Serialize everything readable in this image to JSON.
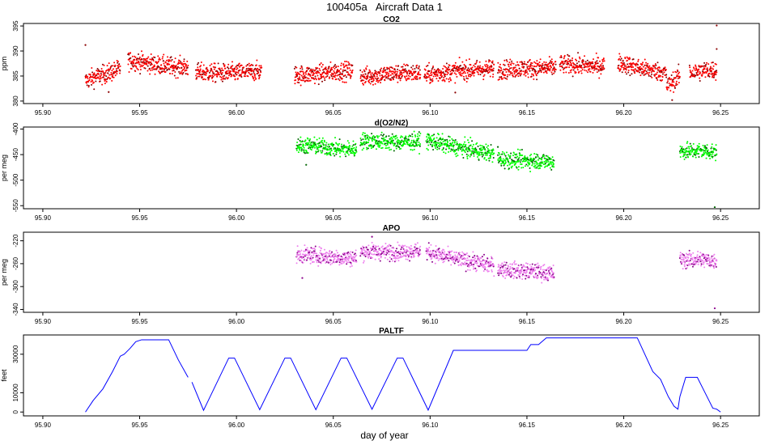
{
  "figure": {
    "title": "100405a   Aircraft Data 1",
    "xlabel": "day of year",
    "x_ticks": [
      95.9,
      95.95,
      96.0,
      96.05,
      96.1,
      96.15,
      96.2,
      96.25
    ],
    "x_tick_labels": [
      "95.90",
      "95.95",
      "96.00",
      "96.05",
      "96.10",
      "96.15",
      "96.20",
      "96.25"
    ],
    "xlim": [
      95.89,
      96.27
    ]
  },
  "chart_data": [
    {
      "id": "co2",
      "type": "scatter",
      "title": "CO2",
      "ylabel": "ppm",
      "ylim": [
        379.5,
        395.5
      ],
      "y_ticks": [
        380,
        385,
        390,
        395
      ],
      "y_tick_labels": [
        "380",
        "385",
        "390",
        "395"
      ],
      "color": "#ff0000",
      "edge_color": "#8b0000",
      "noise": 0.9,
      "segments": [
        {
          "x0": 95.922,
          "x1": 95.94,
          "y0": 384.0,
          "y1": 386.5
        },
        {
          "x0": 95.944,
          "x1": 95.975,
          "y0": 388.0,
          "y1": 386.6
        },
        {
          "x0": 95.979,
          "x1": 96.013,
          "y0": 385.6,
          "y1": 385.8
        },
        {
          "x0": 96.03,
          "x1": 96.06,
          "y0": 385.2,
          "y1": 386.0
        },
        {
          "x0": 96.064,
          "x1": 96.095,
          "y0": 385.0,
          "y1": 385.7
        },
        {
          "x0": 96.097,
          "x1": 96.133,
          "y0": 385.3,
          "y1": 386.6
        },
        {
          "x0": 96.135,
          "x1": 96.165,
          "y0": 386.2,
          "y1": 386.8
        },
        {
          "x0": 96.167,
          "x1": 96.19,
          "y0": 387.2,
          "y1": 387.0
        },
        {
          "x0": 96.197,
          "x1": 96.222,
          "y0": 387.6,
          "y1": 385.5
        },
        {
          "x0": 96.222,
          "x1": 96.229,
          "y0": 383.0,
          "y1": 385.0
        },
        {
          "x0": 96.234,
          "x1": 96.248,
          "y0": 385.8,
          "y1": 386.2
        }
      ],
      "outliers": [
        {
          "x": 95.922,
          "y": 391.2
        },
        {
          "x": 95.934,
          "y": 381.8
        },
        {
          "x": 96.113,
          "y": 381.7
        },
        {
          "x": 96.225,
          "y": 380.2
        },
        {
          "x": 96.248,
          "y": 395.1
        },
        {
          "x": 96.248,
          "y": 390.4
        }
      ]
    },
    {
      "id": "do2n2",
      "type": "scatter",
      "title": "d(O2/N2)",
      "ylabel": "per meg",
      "ylim": [
        -556,
        -396
      ],
      "y_ticks": [
        -550,
        -500,
        -450,
        -400
      ],
      "y_tick_labels": [
        "-550",
        "-500",
        "-450",
        "-400"
      ],
      "color": "#00ff00",
      "edge_color": "#006400",
      "noise": 8,
      "segments": [
        {
          "x0": 96.031,
          "x1": 96.062,
          "y0": -432,
          "y1": -440
        },
        {
          "x0": 96.064,
          "x1": 96.095,
          "y0": -424,
          "y1": -425
        },
        {
          "x0": 96.098,
          "x1": 96.133,
          "y0": -422,
          "y1": -450
        },
        {
          "x0": 96.135,
          "x1": 96.164,
          "y0": -458,
          "y1": -465
        },
        {
          "x0": 96.229,
          "x1": 96.248,
          "y0": -442,
          "y1": -445
        }
      ],
      "outliers": [
        {
          "x": 96.247,
          "y": -553
        },
        {
          "x": 96.036,
          "y": -470
        },
        {
          "x": 96.135,
          "y": -435
        }
      ]
    },
    {
      "id": "apo",
      "type": "scatter",
      "title": "APO",
      "ylabel": "per meg",
      "ylim": [
        -345,
        -205
      ],
      "y_ticks": [
        -340,
        -300,
        -260,
        -220
      ],
      "y_tick_labels": [
        "-340",
        "-300",
        "-260",
        "-220"
      ],
      "color": "#ee82ee",
      "edge_color": "#8b008b",
      "noise": 7,
      "segments": [
        {
          "x0": 96.031,
          "x1": 96.062,
          "y0": -245,
          "y1": -250
        },
        {
          "x0": 96.064,
          "x1": 96.095,
          "y0": -240,
          "y1": -238
        },
        {
          "x0": 96.098,
          "x1": 96.133,
          "y0": -240,
          "y1": -265
        },
        {
          "x0": 96.135,
          "x1": 96.164,
          "y0": -268,
          "y1": -278
        },
        {
          "x0": 96.229,
          "x1": 96.248,
          "y0": -252,
          "y1": -255
        }
      ],
      "outliers": [
        {
          "x": 96.247,
          "y": -338
        },
        {
          "x": 96.07,
          "y": -213
        },
        {
          "x": 96.034,
          "y": -285
        }
      ]
    },
    {
      "id": "paltf",
      "type": "line",
      "title": "PALTF",
      "ylabel": "feet",
      "ylim": [
        -2000,
        40000
      ],
      "y_ticks": [
        0,
        10000,
        30000
      ],
      "y_tick_labels": [
        "0",
        "10000",
        "30000"
      ],
      "color": "#0000ff",
      "series": [
        {
          "name": "",
          "points": [
            [
              95.922,
              0
            ],
            [
              95.926,
              6000
            ],
            [
              95.931,
              12000
            ],
            [
              95.936,
              21000
            ],
            [
              95.94,
              29000
            ],
            [
              95.942,
              30000
            ],
            [
              95.945,
              33000
            ],
            [
              95.948,
              36500
            ],
            [
              95.951,
              37500
            ],
            [
              95.965,
              37500
            ],
            [
              95.97,
              27000
            ],
            [
              95.975,
              18000
            ]
          ]
        },
        {
          "name": "",
          "points": [
            [
              95.977,
              15500
            ],
            [
              95.983,
              900
            ],
            [
              95.996,
              28000
            ],
            [
              95.999,
              28000
            ],
            [
              96.012,
              1200
            ],
            [
              96.025,
              28000
            ],
            [
              96.028,
              28000
            ],
            [
              96.041,
              1200
            ],
            [
              96.054,
              28000
            ],
            [
              96.057,
              28000
            ],
            [
              96.07,
              1400
            ],
            [
              96.083,
              28000
            ],
            [
              96.086,
              28000
            ],
            [
              96.099,
              1000
            ],
            [
              96.112,
              32000
            ],
            [
              96.15,
              32000
            ],
            [
              96.152,
              35000
            ],
            [
              96.156,
              35000
            ],
            [
              96.16,
              38500
            ],
            [
              96.207,
              38500
            ],
            [
              96.215,
              21000
            ],
            [
              96.219,
              17000
            ],
            [
              96.223,
              8000
            ],
            [
              96.226,
              3000
            ],
            [
              96.228,
              1500
            ],
            [
              96.229,
              8000
            ],
            [
              96.232,
              18000
            ],
            [
              96.238,
              18000
            ],
            [
              96.242,
              10000
            ],
            [
              96.246,
              2000
            ],
            [
              96.248,
              1500
            ],
            [
              96.25,
              0
            ]
          ]
        }
      ]
    }
  ]
}
